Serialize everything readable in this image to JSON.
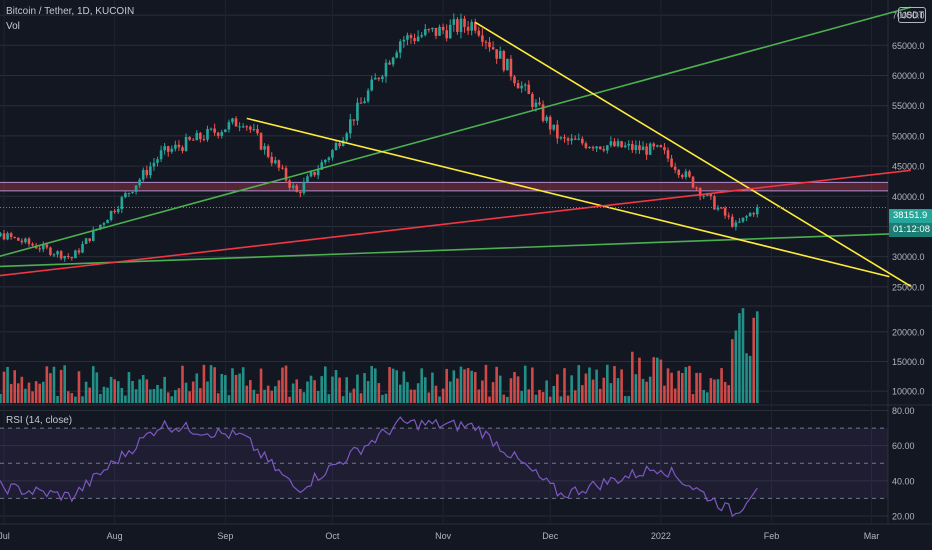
{
  "header": {
    "title": "Bitcoin / Tether, 1D, KUCOIN",
    "volume_label": "Vol",
    "rsi_label": "RSI (14, close)",
    "currency_button": "USDT"
  },
  "price_tag": {
    "value": "38151.9",
    "countdown": "01:12:08"
  },
  "colors": {
    "background": "#131722",
    "up": "#26a69a",
    "down": "#ef5350",
    "rsi_line": "#7e57c2",
    "green_line": "#4caf50",
    "yellow_line": "#ffeb3b",
    "red_line": "#f23645",
    "zone": "#f7525f"
  },
  "chart_data": [
    {
      "type": "candlestick",
      "title": "Bitcoin / Tether, 1D, KUCOIN",
      "y_ticks": [
        "70000.0",
        "65000.0",
        "60000.0",
        "55000.0",
        "50000.0",
        "45000.0",
        "40000.0",
        "35000.0",
        "30000.0",
        "25000.0"
      ],
      "x_ticks": [
        "Jul",
        "Aug",
        "Sep",
        "Oct",
        "Nov",
        "Dec",
        "2022",
        "Feb",
        "Mar"
      ],
      "ylim": [
        22000,
        72500
      ],
      "key_closes": [
        {
          "date": "Jun 17",
          "value": 35000
        },
        {
          "date": "Jun 22",
          "value": 33000
        },
        {
          "date": "Jul 1",
          "value": 33500
        },
        {
          "date": "Jul 20",
          "value": 29800
        },
        {
          "date": "Aug 14",
          "value": 47000
        },
        {
          "date": "Sep 6",
          "value": 52700
        },
        {
          "date": "Sep 21",
          "value": 40500
        },
        {
          "date": "Oct 1",
          "value": 47500
        },
        {
          "date": "Oct 20",
          "value": 65900
        },
        {
          "date": "Nov 10",
          "value": 68700
        },
        {
          "date": "Dec 4",
          "value": 49200
        },
        {
          "date": "Jan 1",
          "value": 47500
        },
        {
          "date": "Jan 22",
          "value": 35000
        },
        {
          "date": "Jan 28",
          "value": 38151.9
        }
      ],
      "levels": {
        "zone": [
          40900,
          42300
        ],
        "dotted_last_price": 38151.9
      },
      "trendlines": [
        {
          "color": "green",
          "from": {
            "date": "Jun 17",
            "value": 28000
          },
          "to": {
            "date": "Mar 12",
            "value": 71300
          }
        },
        {
          "color": "green",
          "from": {
            "date": "Jun 17",
            "value": 28100
          },
          "to": {
            "date": "Mar 12",
            "value": 33900
          }
        },
        {
          "color": "yellow",
          "from": {
            "date": "Nov 10",
            "value": 68800
          },
          "to": {
            "date": "Mar 12",
            "value": 25100
          }
        },
        {
          "color": "yellow",
          "from": {
            "date": "Sep 7",
            "value": 52900
          },
          "to": {
            "date": "Mar 6",
            "value": 26700
          }
        },
        {
          "color": "red",
          "from": {
            "date": "Jun 17",
            "value": 26000
          },
          "to": {
            "date": "Mar 12",
            "value": 44300
          }
        }
      ]
    },
    {
      "type": "bar",
      "title": "Vol",
      "y_ticks": [
        "20000.0",
        "15000.0",
        "10000.0"
      ],
      "ylim": [
        8000,
        24200
      ]
    },
    {
      "type": "line",
      "title": "RSI (14, close)",
      "y_ticks": [
        "80.00",
        "60.00",
        "40.00",
        "20.00"
      ],
      "ylim": [
        16,
        82
      ],
      "bands": [
        70,
        50,
        30
      ],
      "key_values": [
        {
          "date": "Jun 17",
          "value": 40
        },
        {
          "date": "Jul 20",
          "value": 31
        },
        {
          "date": "Aug 14",
          "value": 72
        },
        {
          "date": "Sep 6",
          "value": 65
        },
        {
          "date": "Sep 21",
          "value": 35
        },
        {
          "date": "Oct 20",
          "value": 73
        },
        {
          "date": "Nov 10",
          "value": 71
        },
        {
          "date": "Dec 4",
          "value": 32
        },
        {
          "date": "Jan 1",
          "value": 48
        },
        {
          "date": "Jan 22",
          "value": 21
        },
        {
          "date": "Jan 28",
          "value": 38
        }
      ]
    }
  ]
}
